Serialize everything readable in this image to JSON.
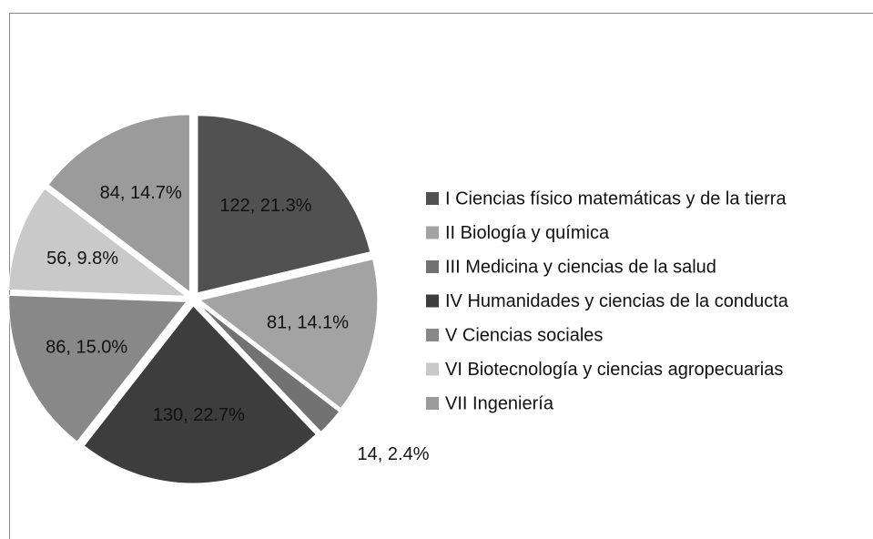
{
  "chart_data": {
    "type": "pie",
    "categories": [
      "I Ciencias físico matemáticas  y de la tierra",
      "II Biología y química",
      "III Medicina y ciencias de la salud",
      "IV Humanidades y ciencias de la conducta",
      "V Ciencias sociales",
      "VI Biotecnología y ciencias agropecuarias",
      "VII Ingeniería"
    ],
    "values": [
      122,
      81,
      14,
      130,
      86,
      56,
      84
    ],
    "value_labels": [
      "122, 21.3%",
      "81, 14.1%",
      "14, 2.4%",
      "130, 22.7%",
      "86, 15.0%",
      "56, 9.8%",
      "84, 14.7%"
    ],
    "colors": [
      "#515151",
      "#a3a3a3",
      "#727272",
      "#3d3d3d",
      "#888888",
      "#c9c9c9",
      "#9b9b9b"
    ],
    "legend": "right"
  }
}
